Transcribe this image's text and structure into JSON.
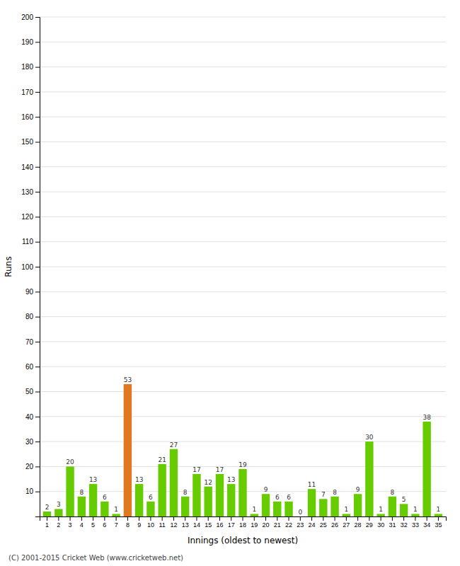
{
  "chart_data": {
    "type": "bar",
    "xlabel": "Innings (oldest to newest)",
    "ylabel": "Runs",
    "categories": [
      1,
      2,
      3,
      4,
      5,
      6,
      7,
      8,
      9,
      10,
      11,
      12,
      13,
      14,
      15,
      16,
      17,
      18,
      19,
      20,
      21,
      22,
      23,
      24,
      25,
      26,
      27,
      28,
      29,
      30,
      31,
      32,
      33,
      34,
      35
    ],
    "values": [
      2,
      3,
      20,
      8,
      13,
      6,
      1,
      53,
      13,
      6,
      21,
      27,
      8,
      17,
      12,
      17,
      13,
      19,
      1,
      9,
      6,
      6,
      0,
      11,
      7,
      8,
      1,
      9,
      30,
      1,
      8,
      5,
      1,
      38,
      1
    ],
    "colors": [
      "#66cc00",
      "#66cc00",
      "#66cc00",
      "#66cc00",
      "#66cc00",
      "#66cc00",
      "#66cc00",
      "#e07820",
      "#66cc00",
      "#66cc00",
      "#66cc00",
      "#66cc00",
      "#66cc00",
      "#66cc00",
      "#66cc00",
      "#66cc00",
      "#66cc00",
      "#66cc00",
      "#66cc00",
      "#66cc00",
      "#66cc00",
      "#66cc00",
      "#66cc00",
      "#66cc00",
      "#66cc00",
      "#66cc00",
      "#66cc00",
      "#66cc00",
      "#66cc00",
      "#66cc00",
      "#66cc00",
      "#66cc00",
      "#66cc00",
      "#66cc00",
      "#66cc00"
    ],
    "ylim": [
      0,
      200
    ],
    "yticks": [
      {
        "value": 0,
        "label": ""
      },
      10,
      20,
      30,
      40,
      50,
      60,
      70,
      80,
      90,
      100,
      110,
      120,
      130,
      140,
      150,
      160,
      170,
      180,
      190,
      200
    ],
    "grid": true,
    "data_labels": true,
    "annotations": [
      "(C) 2001-2015 Cricket Web (www.cricketweb.net)"
    ]
  }
}
